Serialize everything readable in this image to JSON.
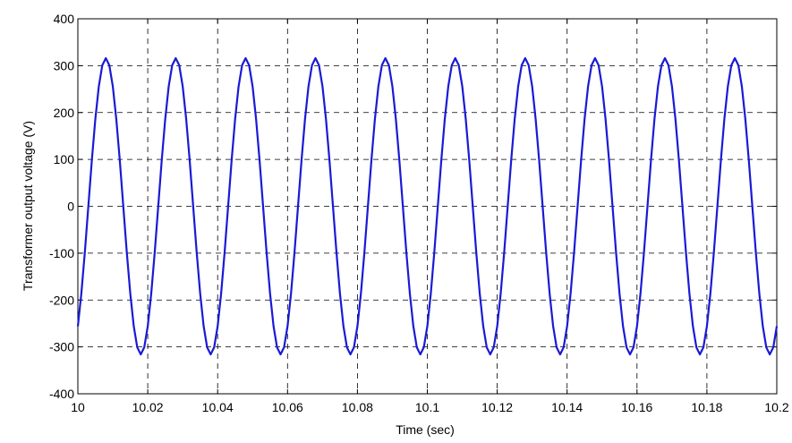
{
  "chart_data": {
    "type": "line",
    "xlabel": "Time (sec)",
    "ylabel": "Transformer output voltage (V)",
    "xlim": [
      10,
      10.2
    ],
    "ylim": [
      -400,
      400
    ],
    "xticks": [
      10,
      10.02,
      10.04,
      10.06,
      10.08,
      10.1,
      10.12,
      10.14,
      10.16,
      10.18,
      10.2
    ],
    "yticks": [
      -400,
      -300,
      -200,
      -100,
      0,
      100,
      200,
      300,
      400
    ],
    "grid": true,
    "x": [
      10,
      10.001,
      10.002,
      10.003,
      10.004,
      10.005,
      10.006,
      10.007,
      10.008,
      10.009,
      10.01,
      10.011,
      10.012,
      10.013,
      10.014,
      10.015,
      10.016,
      10.017,
      10.018,
      10.019,
      10.02,
      10.021,
      10.022,
      10.023,
      10.024,
      10.025,
      10.026,
      10.027,
      10.028,
      10.029,
      10.03,
      10.031,
      10.032,
      10.033,
      10.034,
      10.035,
      10.036,
      10.037,
      10.038,
      10.039,
      10.04,
      10.041,
      10.042,
      10.043,
      10.044,
      10.045,
      10.046,
      10.047,
      10.048,
      10.049,
      10.05,
      10.051,
      10.052,
      10.053,
      10.054,
      10.055,
      10.056,
      10.057,
      10.058,
      10.059,
      10.06,
      10.061,
      10.062,
      10.063,
      10.064,
      10.065,
      10.066,
      10.067,
      10.068,
      10.069,
      10.07,
      10.071,
      10.072,
      10.073,
      10.074,
      10.075,
      10.076,
      10.077,
      10.078,
      10.079,
      10.08,
      10.081,
      10.082,
      10.083,
      10.084,
      10.085,
      10.086,
      10.087,
      10.088,
      10.089,
      10.09,
      10.091,
      10.092,
      10.093,
      10.094,
      10.095,
      10.096,
      10.097,
      10.098,
      10.099,
      10.1,
      10.101,
      10.102,
      10.103,
      10.104,
      10.105,
      10.106,
      10.107,
      10.108,
      10.109,
      10.11,
      10.111,
      10.112,
      10.113,
      10.114,
      10.115,
      10.116,
      10.117,
      10.118,
      10.119,
      10.12,
      10.121,
      10.122,
      10.123,
      10.124,
      10.125,
      10.126,
      10.127,
      10.128,
      10.129,
      10.13,
      10.131,
      10.132,
      10.133,
      10.134,
      10.135,
      10.136,
      10.137,
      10.138,
      10.139,
      10.14,
      10.141,
      10.142,
      10.143,
      10.144,
      10.145,
      10.146,
      10.147,
      10.148,
      10.149,
      10.15,
      10.151,
      10.152,
      10.153,
      10.154,
      10.155,
      10.156,
      10.157,
      10.158,
      10.159,
      10.16,
      10.161,
      10.162,
      10.163,
      10.164,
      10.165,
      10.166,
      10.167,
      10.168,
      10.169,
      10.17,
      10.171,
      10.172,
      10.173,
      10.174,
      10.175,
      10.176,
      10.177,
      10.178,
      10.179,
      10.18,
      10.181,
      10.182,
      10.183,
      10.184,
      10.185,
      10.186,
      10.187,
      10.188,
      10.189,
      10.19,
      10.191,
      10.192,
      10.193,
      10.194,
      10.195,
      10.196,
      10.197,
      10.198,
      10.199,
      10.2
    ],
    "series": [
      {
        "color": "#1a1ad6",
        "values": [
          -256,
          -186,
          -98,
          0,
          98,
          186,
          256,
          301,
          316,
          301,
          256,
          186,
          98,
          0,
          -98,
          -186,
          -256,
          -301,
          -316,
          -301,
          -256,
          -186,
          -98,
          0,
          98,
          186,
          256,
          301,
          316,
          301,
          256,
          186,
          98,
          0,
          -98,
          -186,
          -256,
          -301,
          -316,
          -301,
          -256,
          -186,
          -98,
          0,
          98,
          186,
          256,
          301,
          316,
          301,
          256,
          186,
          98,
          0,
          -98,
          -186,
          -256,
          -301,
          -316,
          -301,
          -256,
          -186,
          -98,
          0,
          98,
          186,
          256,
          301,
          316,
          301,
          256,
          186,
          98,
          0,
          -98,
          -186,
          -256,
          -301,
          -316,
          -301,
          -256,
          -186,
          -98,
          0,
          98,
          186,
          256,
          301,
          316,
          301,
          256,
          186,
          98,
          0,
          -98,
          -186,
          -256,
          -301,
          -316,
          -301,
          -256,
          -186,
          -98,
          0,
          98,
          186,
          256,
          301,
          316,
          301,
          256,
          186,
          98,
          0,
          -98,
          -186,
          -256,
          -301,
          -316,
          -301,
          -256,
          -186,
          -98,
          0,
          98,
          186,
          256,
          301,
          316,
          301,
          256,
          186,
          98,
          0,
          -98,
          -186,
          -256,
          -301,
          -316,
          -301,
          -256,
          -186,
          -98,
          0,
          98,
          186,
          256,
          301,
          316,
          301,
          256,
          186,
          98,
          0,
          -98,
          -186,
          -256,
          -301,
          -316,
          -301,
          -256,
          -186,
          -98,
          0,
          98,
          186,
          256,
          301,
          316,
          301,
          256,
          186,
          98,
          0,
          -98,
          -186,
          -256,
          -301,
          -316,
          -301,
          -256,
          -186,
          -98,
          0,
          98,
          186,
          256,
          301,
          316,
          301,
          256,
          186,
          98,
          0,
          -98,
          -186,
          -256,
          -301,
          -316,
          -301,
          -256
        ]
      }
    ]
  }
}
